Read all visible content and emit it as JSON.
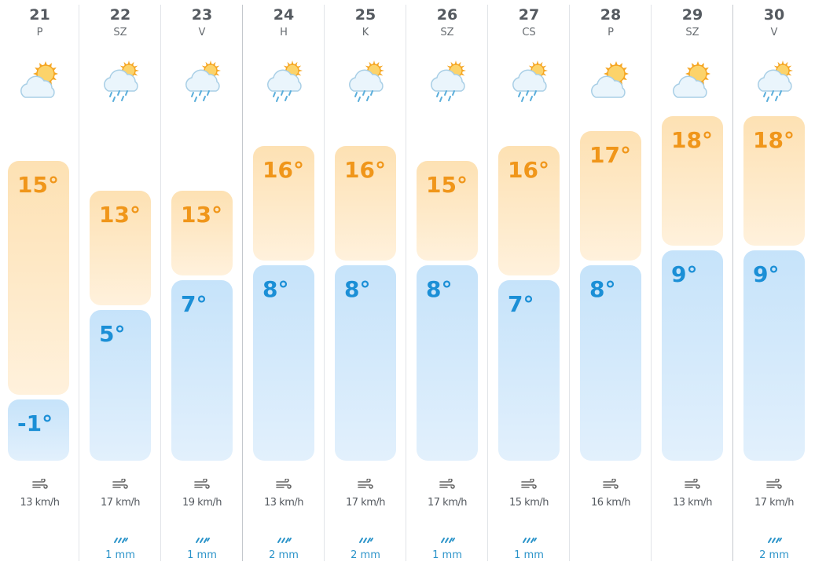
{
  "colors": {
    "high": "#f0961a",
    "low": "#1b8fd6",
    "rain": "#2a93c9"
  },
  "days": [
    {
      "date": "21",
      "dow": "P",
      "icon": "partly-cloudy-icon",
      "high": "15°",
      "low": "-1°",
      "hi_val": 15,
      "lo_val": -1,
      "wind": "13 km/h",
      "rain": ""
    },
    {
      "date": "22",
      "dow": "SZ",
      "icon": "rain-sun-icon",
      "high": "13°",
      "low": "5°",
      "hi_val": 13,
      "lo_val": 5,
      "wind": "17 km/h",
      "rain": "1 mm"
    },
    {
      "date": "23",
      "dow": "V",
      "icon": "rain-sun-icon",
      "high": "13°",
      "low": "7°",
      "hi_val": 13,
      "lo_val": 7,
      "wind": "19 km/h",
      "rain": "1 mm"
    },
    {
      "date": "24",
      "dow": "H",
      "icon": "rain-sun-icon",
      "high": "16°",
      "low": "8°",
      "hi_val": 16,
      "lo_val": 8,
      "wind": "13 km/h",
      "rain": "2 mm"
    },
    {
      "date": "25",
      "dow": "K",
      "icon": "rain-sun-icon",
      "high": "16°",
      "low": "8°",
      "hi_val": 16,
      "lo_val": 8,
      "wind": "17 km/h",
      "rain": "2 mm"
    },
    {
      "date": "26",
      "dow": "SZ",
      "icon": "rain-sun-icon",
      "high": "15°",
      "low": "8°",
      "hi_val": 15,
      "lo_val": 8,
      "wind": "17 km/h",
      "rain": "1 mm"
    },
    {
      "date": "27",
      "dow": "CS",
      "icon": "rain-sun-icon",
      "high": "16°",
      "low": "7°",
      "hi_val": 16,
      "lo_val": 7,
      "wind": "15 km/h",
      "rain": "1 mm"
    },
    {
      "date": "28",
      "dow": "P",
      "icon": "partly-cloudy-icon",
      "high": "17°",
      "low": "8°",
      "hi_val": 17,
      "lo_val": 8,
      "wind": "16 km/h",
      "rain": ""
    },
    {
      "date": "29",
      "dow": "SZ",
      "icon": "partly-cloudy-icon",
      "high": "18°",
      "low": "9°",
      "hi_val": 18,
      "lo_val": 9,
      "wind": "13 km/h",
      "rain": ""
    },
    {
      "date": "30",
      "dow": "V",
      "icon": "rain-sun-icon",
      "high": "18°",
      "low": "9°",
      "hi_val": 18,
      "lo_val": 9,
      "wind": "17 km/h",
      "rain": "2 mm"
    }
  ]
}
